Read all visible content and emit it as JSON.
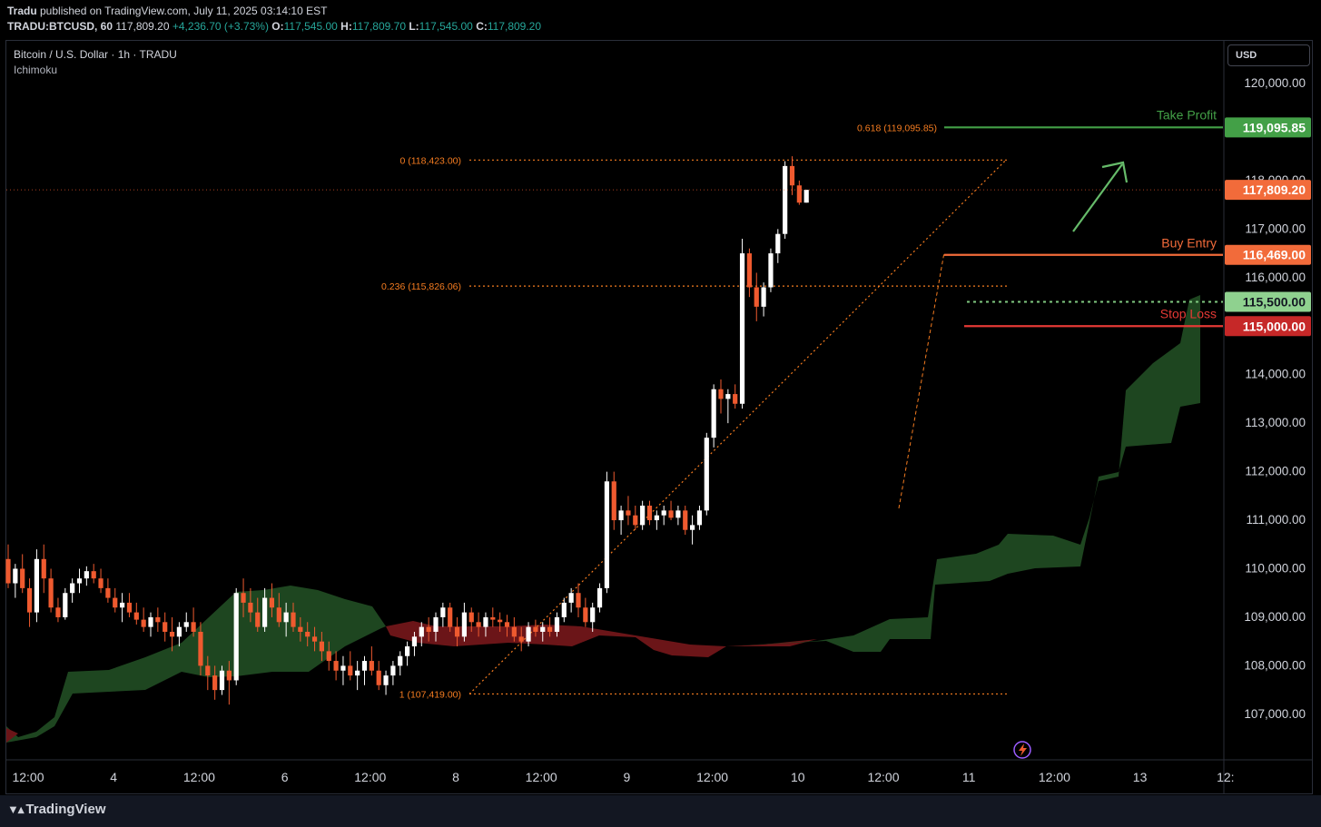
{
  "header": {
    "publisher": "Tradu",
    "published_text": " published on TradingView.com, July 11, 2025 03:14:10 EST",
    "symbol": "TRADU:BTCUSD, 60",
    "last": "117,809.20",
    "change": "+4,236.70 (+3.73%)",
    "o_label": "O:",
    "o": "117,545.00",
    "h_label": "H:",
    "h": "117,809.70",
    "l_label": "L:",
    "l": "117,545.00",
    "c_label": "C:",
    "c": "117,809.20"
  },
  "pane": {
    "title": "Bitcoin / U.S. Dollar · 1h · TRADU",
    "indicator": "Ichimoku",
    "currency_button": "USD"
  },
  "brand": {
    "name": "TradingView"
  },
  "colors": {
    "up": "#ffffff",
    "down": "#ef5a2f",
    "fib": "#f57c20",
    "take_profit": "#43a047",
    "buy_entry": "#f26b3a",
    "stop_loss": "#e53935",
    "entry_zone": "#7fc97f",
    "cloud_bull": "#1e4620",
    "cloud_bear": "#6b1518"
  },
  "chart_data": {
    "type": "candlestick",
    "title": "Bitcoin / U.S. Dollar · 1h · TRADU",
    "ylim": [
      106250,
      121250
    ],
    "y_ticks": [
      {
        "v": 120000,
        "label": "120,000.00"
      },
      {
        "v": 118000,
        "label": "118,000.00"
      },
      {
        "v": 117000,
        "label": "117,000.00"
      },
      {
        "v": 116000,
        "label": "116,000.00"
      },
      {
        "v": 114000,
        "label": "114,000.00"
      },
      {
        "v": 113000,
        "label": "113,000.00"
      },
      {
        "v": 112000,
        "label": "112,000.00"
      },
      {
        "v": 111000,
        "label": "111,000.00"
      },
      {
        "v": 110000,
        "label": "110,000.00"
      },
      {
        "v": 109000,
        "label": "109,000.00"
      },
      {
        "v": 108000,
        "label": "108,000.00"
      },
      {
        "v": 107000,
        "label": "107,000.00"
      }
    ],
    "x_ticks": [
      {
        "i": 0,
        "label": "12:00"
      },
      {
        "i": 12,
        "label": "4"
      },
      {
        "i": 24,
        "label": "12:00"
      },
      {
        "i": 36,
        "label": "6"
      },
      {
        "i": 48,
        "label": "12:00"
      },
      {
        "i": 60,
        "label": "8"
      },
      {
        "i": 72,
        "label": "12:00"
      },
      {
        "i": 84,
        "label": "9"
      },
      {
        "i": 96,
        "label": "12:00"
      },
      {
        "i": 108,
        "label": "10"
      },
      {
        "i": 120,
        "label": "12:00"
      },
      {
        "i": 132,
        "label": "11"
      },
      {
        "i": 144,
        "label": "12:00"
      },
      {
        "i": 156,
        "label": "13"
      },
      {
        "i": 168,
        "label": "12:"
      }
    ],
    "candles": [
      [
        110200,
        110500,
        109600,
        109700
      ],
      [
        109700,
        110100,
        109400,
        110000
      ],
      [
        110000,
        110300,
        109500,
        109600
      ],
      [
        109600,
        109800,
        108800,
        109100
      ],
      [
        109100,
        110400,
        108900,
        110200
      ],
      [
        110200,
        110500,
        109500,
        109800
      ],
      [
        109800,
        110000,
        109100,
        109200
      ],
      [
        109200,
        109400,
        108900,
        109000
      ],
      [
        109000,
        109600,
        108950,
        109500
      ],
      [
        109500,
        109800,
        109300,
        109700
      ],
      [
        109700,
        110000,
        109500,
        109800
      ],
      [
        109800,
        110050,
        109650,
        109950
      ],
      [
        109950,
        110100,
        109700,
        109800
      ],
      [
        109800,
        110000,
        109500,
        109600
      ],
      [
        109600,
        109800,
        109300,
        109400
      ],
      [
        109400,
        109600,
        109100,
        109200
      ],
      [
        109200,
        109500,
        108900,
        109300
      ],
      [
        109300,
        109500,
        109000,
        109100
      ],
      [
        109100,
        109300,
        108850,
        108950
      ],
      [
        108950,
        109200,
        108700,
        108800
      ],
      [
        108800,
        109100,
        108600,
        109000
      ],
      [
        109000,
        109200,
        108700,
        108900
      ],
      [
        108900,
        109100,
        108500,
        108700
      ],
      [
        108700,
        109000,
        108300,
        108600
      ],
      [
        108600,
        108900,
        108400,
        108800
      ],
      [
        108800,
        109100,
        108700,
        108900
      ],
      [
        108900,
        109200,
        108600,
        108700
      ],
      [
        108700,
        108900,
        107800,
        108000
      ],
      [
        108000,
        108200,
        107500,
        107800
      ],
      [
        107800,
        108000,
        107300,
        107500
      ],
      [
        107500,
        108000,
        107400,
        107900
      ],
      [
        107900,
        108100,
        107200,
        107700
      ],
      [
        107700,
        109600,
        107600,
        109500
      ],
      [
        109500,
        109800,
        109000,
        109300
      ],
      [
        109300,
        109600,
        108900,
        109100
      ],
      [
        109100,
        109400,
        108700,
        108800
      ],
      [
        108800,
        109600,
        108700,
        109400
      ],
      [
        109400,
        109700,
        109000,
        109200
      ],
      [
        109200,
        109500,
        108800,
        108900
      ],
      [
        108900,
        109300,
        108600,
        109100
      ],
      [
        109100,
        109300,
        108700,
        108800
      ],
      [
        108800,
        109000,
        108500,
        108700
      ],
      [
        108700,
        108900,
        108400,
        108600
      ],
      [
        108600,
        108800,
        108300,
        108500
      ],
      [
        108500,
        108700,
        108100,
        108300
      ],
      [
        108300,
        108500,
        107900,
        108100
      ],
      [
        108100,
        108300,
        107700,
        107900
      ],
      [
        107900,
        108200,
        107600,
        108000
      ],
      [
        108000,
        108300,
        107700,
        107800
      ],
      [
        107800,
        108100,
        107500,
        107900
      ],
      [
        107900,
        108200,
        107600,
        108100
      ],
      [
        108100,
        108400,
        107800,
        107900
      ],
      [
        107900,
        108100,
        107500,
        107600
      ],
      [
        107600,
        107900,
        107400,
        107800
      ],
      [
        107800,
        108100,
        107600,
        108000
      ],
      [
        108000,
        108300,
        107800,
        108200
      ],
      [
        108200,
        108500,
        108000,
        108400
      ],
      [
        108400,
        108700,
        108200,
        108600
      ],
      [
        108600,
        108900,
        108400,
        108800
      ],
      [
        108800,
        109000,
        108500,
        108700
      ],
      [
        108700,
        109100,
        108500,
        109000
      ],
      [
        109000,
        109300,
        108800,
        109200
      ],
      [
        109200,
        109300,
        108700,
        108800
      ],
      [
        108800,
        109000,
        108400,
        108600
      ],
      [
        108600,
        109300,
        108500,
        109100
      ],
      [
        109100,
        109200,
        108700,
        108900
      ],
      [
        108900,
        109100,
        108600,
        108800
      ],
      [
        108800,
        109100,
        108600,
        109000
      ],
      [
        109000,
        109200,
        108800,
        108950
      ],
      [
        108950,
        109100,
        108700,
        108900
      ],
      [
        108900,
        109050,
        108600,
        108800
      ],
      [
        108800,
        109000,
        108500,
        108600
      ],
      [
        108600,
        108800,
        108300,
        108500
      ],
      [
        108500,
        108900,
        108400,
        108800
      ],
      [
        108800,
        108950,
        108600,
        108700
      ],
      [
        108700,
        108900,
        108500,
        108800
      ],
      [
        108800,
        109000,
        108600,
        108700
      ],
      [
        108700,
        109100,
        108600,
        109000
      ],
      [
        109000,
        109400,
        108900,
        109300
      ],
      [
        109300,
        109600,
        109100,
        109500
      ],
      [
        109500,
        109700,
        109000,
        109200
      ],
      [
        109200,
        109400,
        108800,
        108900
      ],
      [
        108900,
        109300,
        108700,
        109200
      ],
      [
        109200,
        109700,
        109100,
        109600
      ],
      [
        109600,
        112000,
        109500,
        111800
      ],
      [
        111800,
        112000,
        110800,
        111000
      ],
      [
        111000,
        111300,
        110700,
        111200
      ],
      [
        111200,
        111500,
        110900,
        111100
      ],
      [
        111100,
        111300,
        110800,
        110900
      ],
      [
        110900,
        111400,
        110800,
        111300
      ],
      [
        111300,
        111400,
        110900,
        111000
      ],
      [
        111000,
        111200,
        110800,
        111100
      ],
      [
        111100,
        111300,
        110900,
        111200
      ],
      [
        111200,
        111400,
        111000,
        111050
      ],
      [
        111050,
        111300,
        110900,
        111200
      ],
      [
        111200,
        111300,
        110700,
        110800
      ],
      [
        110800,
        111100,
        110500,
        110900
      ],
      [
        110900,
        111300,
        110800,
        111200
      ],
      [
        111200,
        112800,
        111100,
        112700
      ],
      [
        112700,
        113800,
        112500,
        113700
      ],
      [
        113700,
        113900,
        113200,
        113500
      ],
      [
        113500,
        113700,
        113000,
        113600
      ],
      [
        113600,
        113800,
        113300,
        113400
      ],
      [
        113400,
        116800,
        113300,
        116500
      ],
      [
        116500,
        116600,
        115600,
        115800
      ],
      [
        115800,
        116100,
        115100,
        115400
      ],
      [
        115400,
        115900,
        115200,
        115800
      ],
      [
        115800,
        116600,
        115700,
        116500
      ],
      [
        116500,
        117000,
        116300,
        116900
      ],
      [
        116900,
        118400,
        116800,
        118300
      ],
      [
        118300,
        118500,
        117700,
        117900
      ],
      [
        117900,
        118000,
        117500,
        117545
      ],
      [
        117545,
        117809.7,
        117545,
        117809.2
      ]
    ],
    "annotations": {
      "take_profit": {
        "label": "Take Profit",
        "value": 119095.85,
        "price": "119,095.85"
      },
      "buy_entry": {
        "label": "Buy Entry",
        "value": 116469,
        "price": "116,469.00"
      },
      "entry_zone": {
        "value": 115500,
        "price": "115,500.00"
      },
      "stop_loss": {
        "label": "Stop Loss",
        "value": 115000,
        "price": "115,000.00"
      },
      "last_price": {
        "value": 117809.2,
        "price": "117,809.20"
      },
      "fib_levels": [
        {
          "label": "0.618 (119,095.85)",
          "value": 119095.85
        },
        {
          "label": "0 (118,423.00)",
          "value": 118423
        },
        {
          "label": "0.236 (115,826.06)",
          "value": 115826.06
        },
        {
          "label": "1 (107,419.00)",
          "value": 107419
        }
      ]
    }
  }
}
